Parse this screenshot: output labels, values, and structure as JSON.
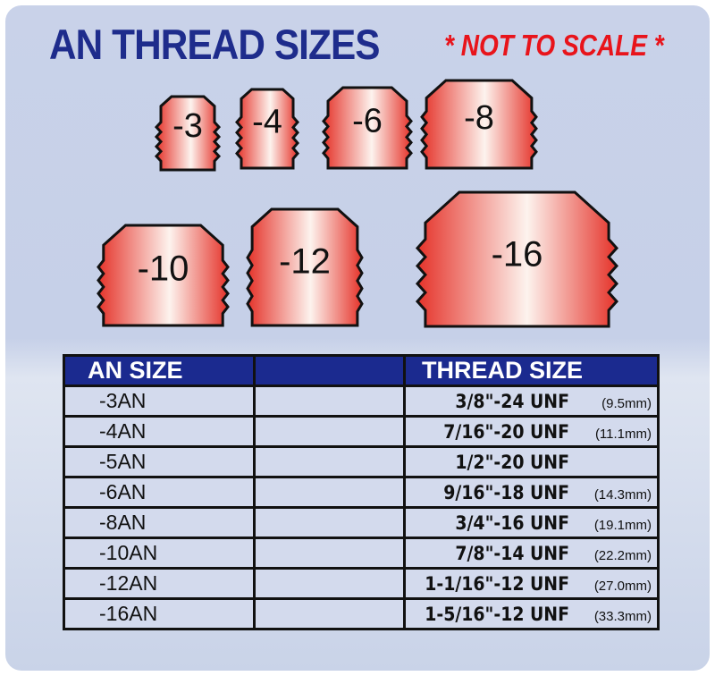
{
  "header": {
    "title": "AN THREAD SIZES",
    "note": "* NOT TO SCALE *"
  },
  "fittings": [
    "-3",
    "-4",
    "-6",
    "-8",
    "-10",
    "-12",
    "-16"
  ],
  "colors": {
    "title": "#1e2c8c",
    "note": "#e8141b",
    "header_bg": "#1b2a8f",
    "fitting_edge": "#e5332a",
    "fitting_center": "#fdf3ee"
  },
  "table": {
    "headers": [
      "AN SIZE",
      "",
      "THREAD SIZE"
    ],
    "rows": [
      {
        "an": "-3AN",
        "thread": "3/8\"-24",
        "unf": "UNF",
        "mm": "(9.5mm)"
      },
      {
        "an": "-4AN",
        "thread": "7/16\"-20",
        "unf": "UNF",
        "mm": "(11.1mm)"
      },
      {
        "an": "-5AN",
        "thread": "1/2\"-20",
        "unf": "UNF",
        "mm": ""
      },
      {
        "an": "-6AN",
        "thread": "9/16\"-18",
        "unf": "UNF",
        "mm": "(14.3mm)"
      },
      {
        "an": "-8AN",
        "thread": "3/4\"-16",
        "unf": "UNF",
        "mm": "(19.1mm)"
      },
      {
        "an": "-10AN",
        "thread": "7/8\"-14",
        "unf": "UNF",
        "mm": "(22.2mm)"
      },
      {
        "an": "-12AN",
        "thread": "1-1/16\"-12",
        "unf": "UNF",
        "mm": "(27.0mm)"
      },
      {
        "an": "-16AN",
        "thread": "1-5/16\"-12",
        "unf": "UNF",
        "mm": "(33.3mm)"
      }
    ]
  }
}
